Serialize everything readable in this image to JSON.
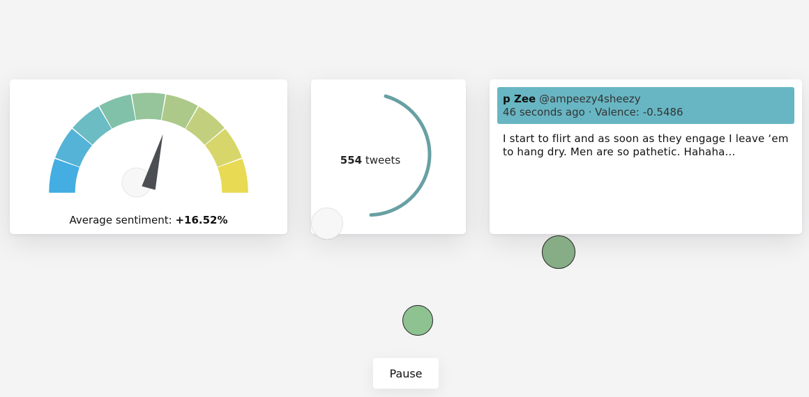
{
  "gauge": {
    "label": "Average sentiment:",
    "value": "+16.52%",
    "needle_fraction": 0.5826,
    "segment_colors": [
      "#44ade2",
      "#54b3d6",
      "#6cbcc4",
      "#81c0a9",
      "#96c49b",
      "#adc98a",
      "#c2d07d",
      "#d7d66a",
      "#e8da52"
    ]
  },
  "counter": {
    "count": "554",
    "unit": "tweets",
    "ring_color": "#68a0a3"
  },
  "tweet": {
    "name": "p Zee",
    "handle": "@ampeezy4sheezy",
    "time": "46 seconds ago",
    "separator": "·",
    "valence_label": "Valence:",
    "valence": "-0.5486",
    "text": "I start to flirt and as soon as they engage I leave ‘em to hang dry. Men are so pathetic. Hahaha..."
  },
  "controls": {
    "pause_label": "Pause"
  }
}
